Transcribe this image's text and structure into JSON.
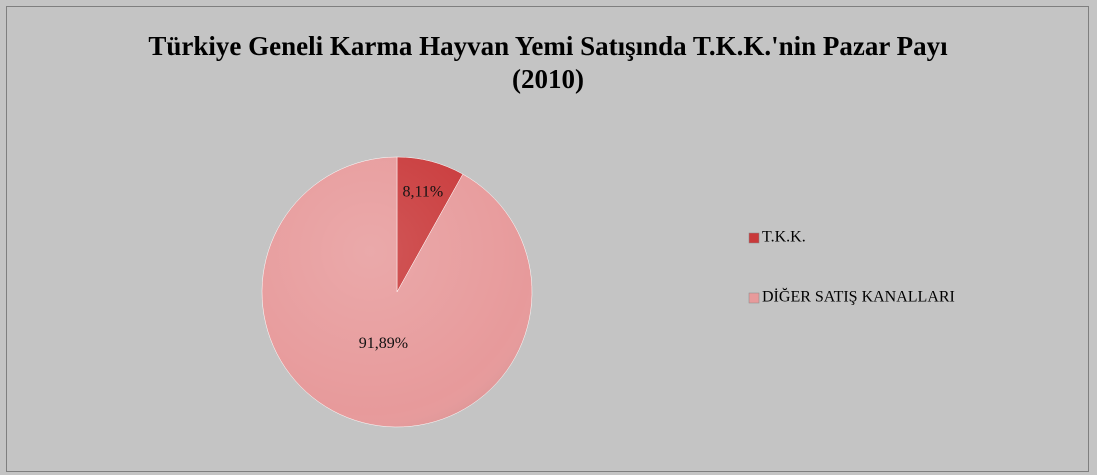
{
  "chart_data": {
    "type": "pie",
    "title": "Türkiye Geneli Karma Hayvan Yemi Satışında T.K.K.'nin Pazar Payı (2010)",
    "categories": [
      "T.K.K.",
      "DİĞER SATIŞ KANALLARI"
    ],
    "values": [
      8.11,
      91.89
    ],
    "value_labels": [
      "8,11%",
      "91,89%"
    ],
    "colors": [
      "#c9393a",
      "#e79a9b"
    ],
    "legend": "right"
  }
}
